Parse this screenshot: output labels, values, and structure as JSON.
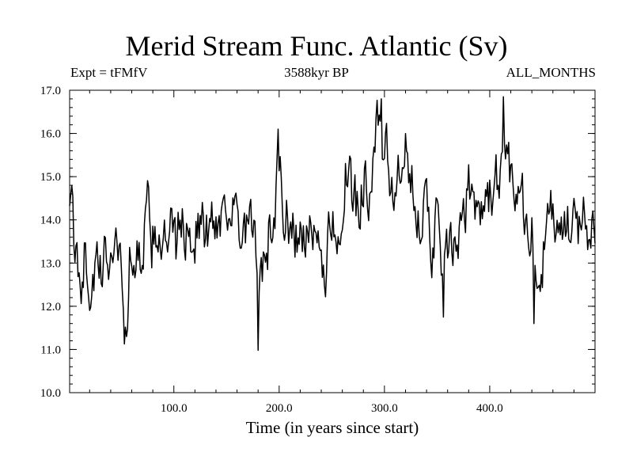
{
  "chart_data": {
    "type": "line",
    "title": "Merid Stream Func. Atlantic (Sv)",
    "subtitle_left": "Expt = tFMfV",
    "subtitle_center": "3588kyr BP",
    "subtitle_right": "ALL_MONTHS",
    "xlabel": "Time (in years since start)",
    "ylabel": "",
    "xlim": [
      1,
      500
    ],
    "ylim": [
      10.0,
      17.0
    ],
    "xticks": [
      100,
      200,
      300,
      400
    ],
    "xtick_labels": [
      "100.0",
      "200.0",
      "300.0",
      "400.0"
    ],
    "yticks": [
      10,
      11,
      12,
      13,
      14,
      15,
      16,
      17
    ],
    "ytick_labels": [
      "10.0",
      "11.0",
      "12.0",
      "13.0",
      "14.0",
      "15.0",
      "16.0",
      "17.0"
    ],
    "grid": false,
    "legend": "none",
    "series": [
      {
        "name": "Merid Stream Func. Atlantic",
        "color": "#000000",
        "anchors_x": [
          1,
          2,
          4,
          6,
          8,
          12,
          16,
          20,
          25,
          30,
          35,
          40,
          45,
          50,
          53,
          55,
          58,
          62,
          66,
          70,
          75,
          78,
          82,
          86,
          90,
          95,
          100,
          103,
          107,
          110,
          115,
          120,
          125,
          130,
          136,
          140,
          146,
          150,
          155,
          160,
          165,
          170,
          175,
          180,
          184,
          190,
          195,
          200,
          205,
          210,
          215,
          220,
          225,
          230,
          235,
          240,
          243,
          248,
          253,
          258,
          263,
          268,
          272,
          276,
          280,
          285,
          290,
          294,
          297,
          300,
          305,
          310,
          315,
          320,
          325,
          330,
          335,
          340,
          345,
          349,
          353,
          356,
          360,
          365,
          370,
          375,
          380,
          385,
          390,
          395,
          400,
          405,
          410,
          413,
          416,
          420,
          425,
          430,
          435,
          440,
          443,
          445,
          450,
          455,
          460,
          465,
          470,
          475,
          480,
          485,
          490,
          495,
          500
        ],
        "anchors_y": [
          14.9,
          14.6,
          13.9,
          12.6,
          13.0,
          12.8,
          13.3,
          12.5,
          12.9,
          12.6,
          13.1,
          13.3,
          13.7,
          13.0,
          11.7,
          11.3,
          12.9,
          13.3,
          13.0,
          13.5,
          14.1,
          13.3,
          13.6,
          13.9,
          13.4,
          13.3,
          13.8,
          13.2,
          14.2,
          13.6,
          13.6,
          13.8,
          14.0,
          13.6,
          13.9,
          14.0,
          14.2,
          14.6,
          14.3,
          13.9,
          13.1,
          13.8,
          13.6,
          12.7,
          12.4,
          13.6,
          14.1,
          15.2,
          14.0,
          13.9,
          13.7,
          13.5,
          13.7,
          13.5,
          13.2,
          13.5,
          12.6,
          13.8,
          14.0,
          13.9,
          15.0,
          14.6,
          14.4,
          14.3,
          15.1,
          14.8,
          15.8,
          16.1,
          15.5,
          15.7,
          15.0,
          14.7,
          14.9,
          15.4,
          14.8,
          14.6,
          14.2,
          14.0,
          13.5,
          14.0,
          13.4,
          12.3,
          13.3,
          13.2,
          13.3,
          13.7,
          14.9,
          14.6,
          14.3,
          13.8,
          14.8,
          14.5,
          15.3,
          15.8,
          15.5,
          15.2,
          15.0,
          14.6,
          14.0,
          13.7,
          12.6,
          12.2,
          13.1,
          13.8,
          14.1,
          13.8,
          13.6,
          13.7,
          13.8,
          13.9,
          14.1,
          13.7,
          14.0
        ],
        "noise_note": "annual series, 500 points; visible year-to-year fluctuation about +/-0.6 Sv around the anchor trend; extremes near 16.85 (~413), 16.8 (~297), 11.0 (~180), 11.3 (~55)"
      }
    ]
  },
  "accent_color": "#000000"
}
